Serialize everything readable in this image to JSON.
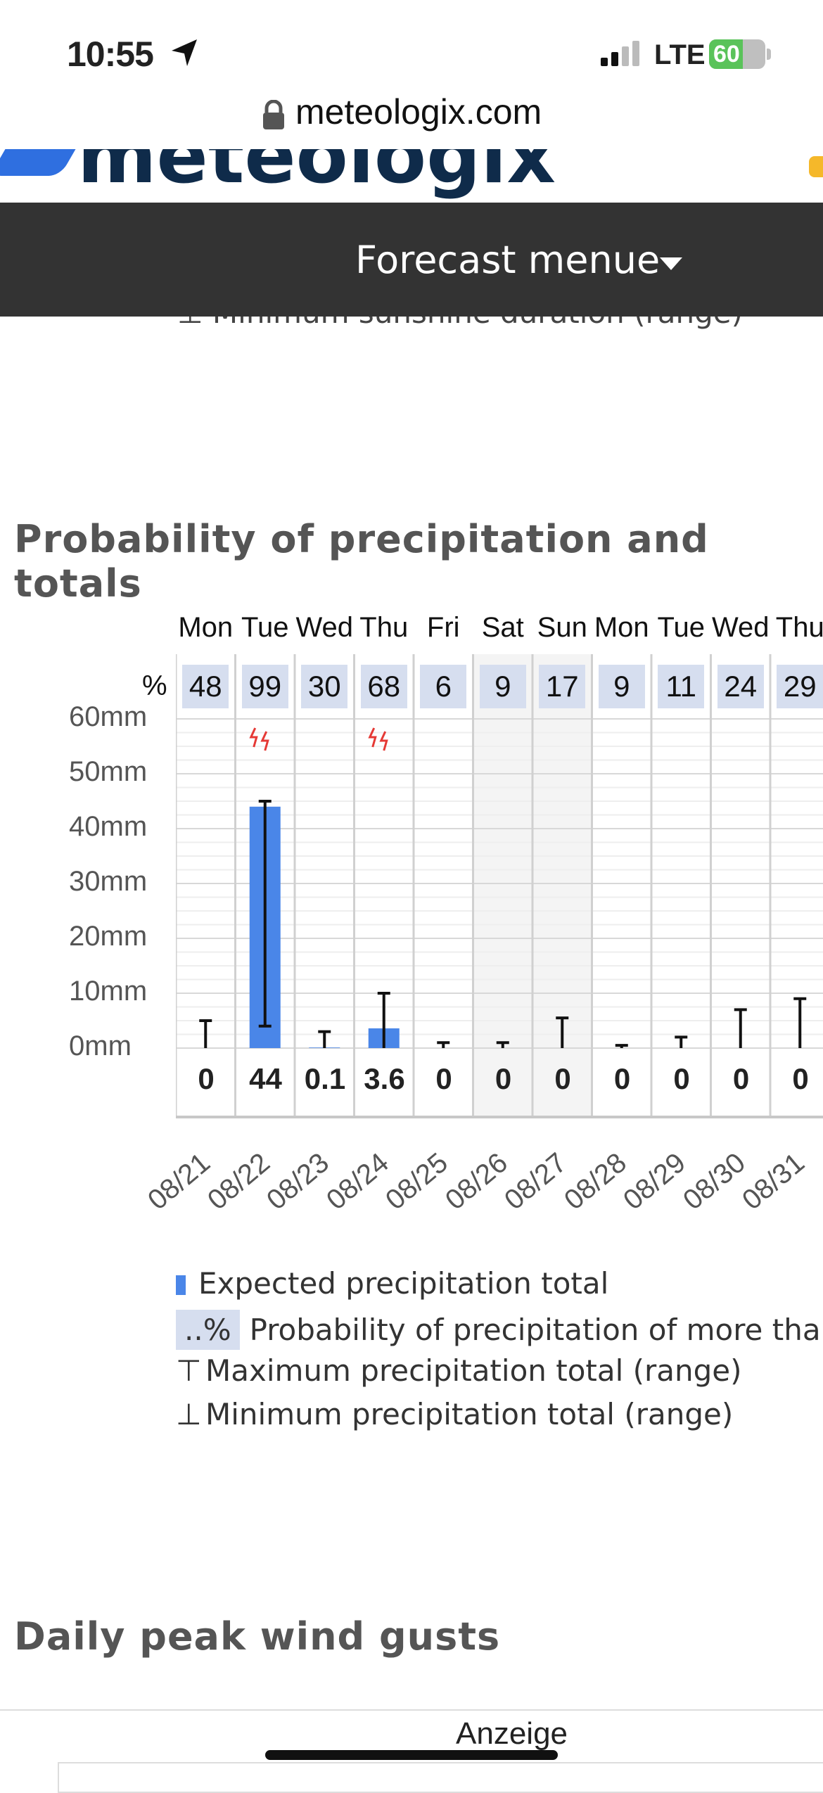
{
  "status": {
    "time": "10:55",
    "network": "LTE",
    "battery": "60"
  },
  "browser": {
    "url": "meteologix.com"
  },
  "site": {
    "logo_text": "meteologix",
    "menu_label": "Forecast menue"
  },
  "prev_legend_cut": "⊥ Minimum sunshine duration (range)",
  "section_title": "Probability of precipitation and totals",
  "chart_data": {
    "type": "bar",
    "title": "Probability of precipitation and totals",
    "y_unit": "mm",
    "ylim": [
      0,
      60
    ],
    "yticks": [
      "60mm",
      "50mm",
      "40mm",
      "30mm",
      "20mm",
      "10mm",
      "0mm"
    ],
    "percent_label": "%",
    "days": [
      "Mon",
      "Tue",
      "Wed",
      "Thu",
      "Fri",
      "Sat",
      "Sun",
      "Mon",
      "Tue",
      "Wed",
      "Thu"
    ],
    "dates": [
      "08/21",
      "08/22",
      "08/23",
      "08/24",
      "08/25",
      "08/26",
      "08/27",
      "08/28",
      "08/29",
      "08/30",
      "08/31"
    ],
    "probability": [
      "48",
      "99",
      "30",
      "68",
      "6",
      "9",
      "17",
      "9",
      "11",
      "24",
      "29"
    ],
    "totals_label": [
      "0",
      "44",
      "0.1",
      "3.6",
      "0",
      "0",
      "0",
      "0",
      "0",
      "0",
      "0"
    ],
    "expected_total": [
      0,
      44,
      0.1,
      3.6,
      0,
      0,
      0,
      0,
      0,
      0,
      0
    ],
    "range_min": [
      0,
      4,
      0,
      0,
      0,
      0,
      0,
      0,
      0,
      0,
      0
    ],
    "range_max": [
      5,
      45,
      3,
      10,
      1,
      1,
      5.5,
      0.5,
      2,
      7,
      9
    ],
    "thunder": [
      false,
      true,
      false,
      true,
      false,
      false,
      false,
      false,
      false,
      false,
      false
    ],
    "weekend": [
      false,
      false,
      false,
      false,
      false,
      true,
      true,
      false,
      false,
      false,
      false
    ],
    "colors": {
      "bar": "#4a86e8",
      "probability_bg": "#d6deef",
      "thunder": "#e53935"
    }
  },
  "legend": {
    "expected": "Expected precipitation total",
    "pct_sample": "..%",
    "probability": "Probability of precipitation of more than",
    "max_symbol": "⊤",
    "max": "Maximum precipitation total (range)",
    "min_symbol": "⊥",
    "min": "Minimum precipitation total (range)"
  },
  "section_title_2": "Daily peak wind gusts",
  "ad_label": "Anzeige"
}
